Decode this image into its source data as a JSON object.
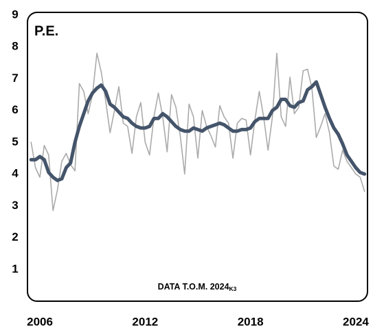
{
  "chart_data": {
    "type": "line",
    "title": "P.E.",
    "annotation": {
      "text": "DATA T.O.M. 2024",
      "sub": "K3"
    },
    "x": [
      2005.5,
      2005.75,
      2006,
      2006.25,
      2006.5,
      2006.75,
      2007,
      2007.25,
      2007.5,
      2007.75,
      2008,
      2008.25,
      2008.5,
      2008.75,
      2009,
      2009.25,
      2009.5,
      2009.75,
      2010,
      2010.25,
      2010.5,
      2010.75,
      2011,
      2011.25,
      2011.5,
      2011.75,
      2012,
      2012.25,
      2012.5,
      2012.75,
      2013,
      2013.25,
      2013.5,
      2013.75,
      2014,
      2014.25,
      2014.5,
      2014.75,
      2015,
      2015.25,
      2015.5,
      2015.75,
      2016,
      2016.25,
      2016.5,
      2016.75,
      2017,
      2017.25,
      2017.5,
      2017.75,
      2018,
      2018.25,
      2018.5,
      2018.75,
      2019,
      2019.25,
      2019.5,
      2019.75,
      2020,
      2020.25,
      2020.5,
      2020.75,
      2021,
      2021.25,
      2021.5,
      2021.75,
      2022,
      2022.25,
      2022.5,
      2022.75,
      2023,
      2023.25,
      2023.5,
      2023.75,
      2024,
      2024.25,
      2024.5
    ],
    "series": [
      {
        "color": "#aaaaaa",
        "width": 1.6,
        "values": [
          5.0,
          4.2,
          3.9,
          4.9,
          4.6,
          2.85,
          3.5,
          4.4,
          4.65,
          4.3,
          4.1,
          6.85,
          6.6,
          5.9,
          6.5,
          7.8,
          7.2,
          6.3,
          5.3,
          6.0,
          6.75,
          5.6,
          5.5,
          4.65,
          5.8,
          6.25,
          5.0,
          4.6,
          5.8,
          6.55,
          5.8,
          4.7,
          6.5,
          6.1,
          5.2,
          4.0,
          6.2,
          5.8,
          4.5,
          6.0,
          5.5,
          5.2,
          4.85,
          6.15,
          5.8,
          5.6,
          4.5,
          5.6,
          5.75,
          5.7,
          4.6,
          5.7,
          6.6,
          5.8,
          4.75,
          5.8,
          7.8,
          5.8,
          5.5,
          7.05,
          5.9,
          6.1,
          7.25,
          7.3,
          6.7,
          5.15,
          5.5,
          5.9,
          5.3,
          4.25,
          4.15,
          4.75,
          4.4,
          4.2,
          4.0,
          3.9,
          3.45
        ]
      },
      {
        "color": "#44546a",
        "width": 5,
        "values": [
          4.45,
          4.45,
          4.55,
          4.45,
          4.05,
          3.9,
          3.8,
          3.85,
          4.2,
          4.35,
          5.0,
          5.5,
          5.9,
          6.3,
          6.55,
          6.7,
          6.8,
          6.6,
          6.2,
          6.1,
          5.95,
          5.8,
          5.75,
          5.6,
          5.5,
          5.45,
          5.45,
          5.5,
          5.75,
          5.75,
          5.9,
          5.8,
          5.65,
          5.5,
          5.4,
          5.35,
          5.35,
          5.45,
          5.4,
          5.35,
          5.45,
          5.5,
          5.55,
          5.6,
          5.55,
          5.45,
          5.35,
          5.35,
          5.4,
          5.4,
          5.45,
          5.65,
          5.75,
          5.75,
          5.75,
          6.0,
          6.1,
          6.35,
          6.35,
          6.15,
          6.1,
          6.25,
          6.3,
          6.65,
          6.75,
          6.9,
          6.5,
          6.1,
          5.75,
          5.45,
          5.25,
          4.95,
          4.6,
          4.4,
          4.2,
          4.05,
          4.0
        ]
      }
    ],
    "xlim": [
      2005.4,
      2024.55
    ],
    "xticks": [
      2006,
      2012,
      2018,
      2024
    ],
    "ylim": [
      0,
      9
    ],
    "yticks": [
      1,
      2,
      3,
      4,
      5,
      6,
      7,
      8,
      9
    ]
  }
}
